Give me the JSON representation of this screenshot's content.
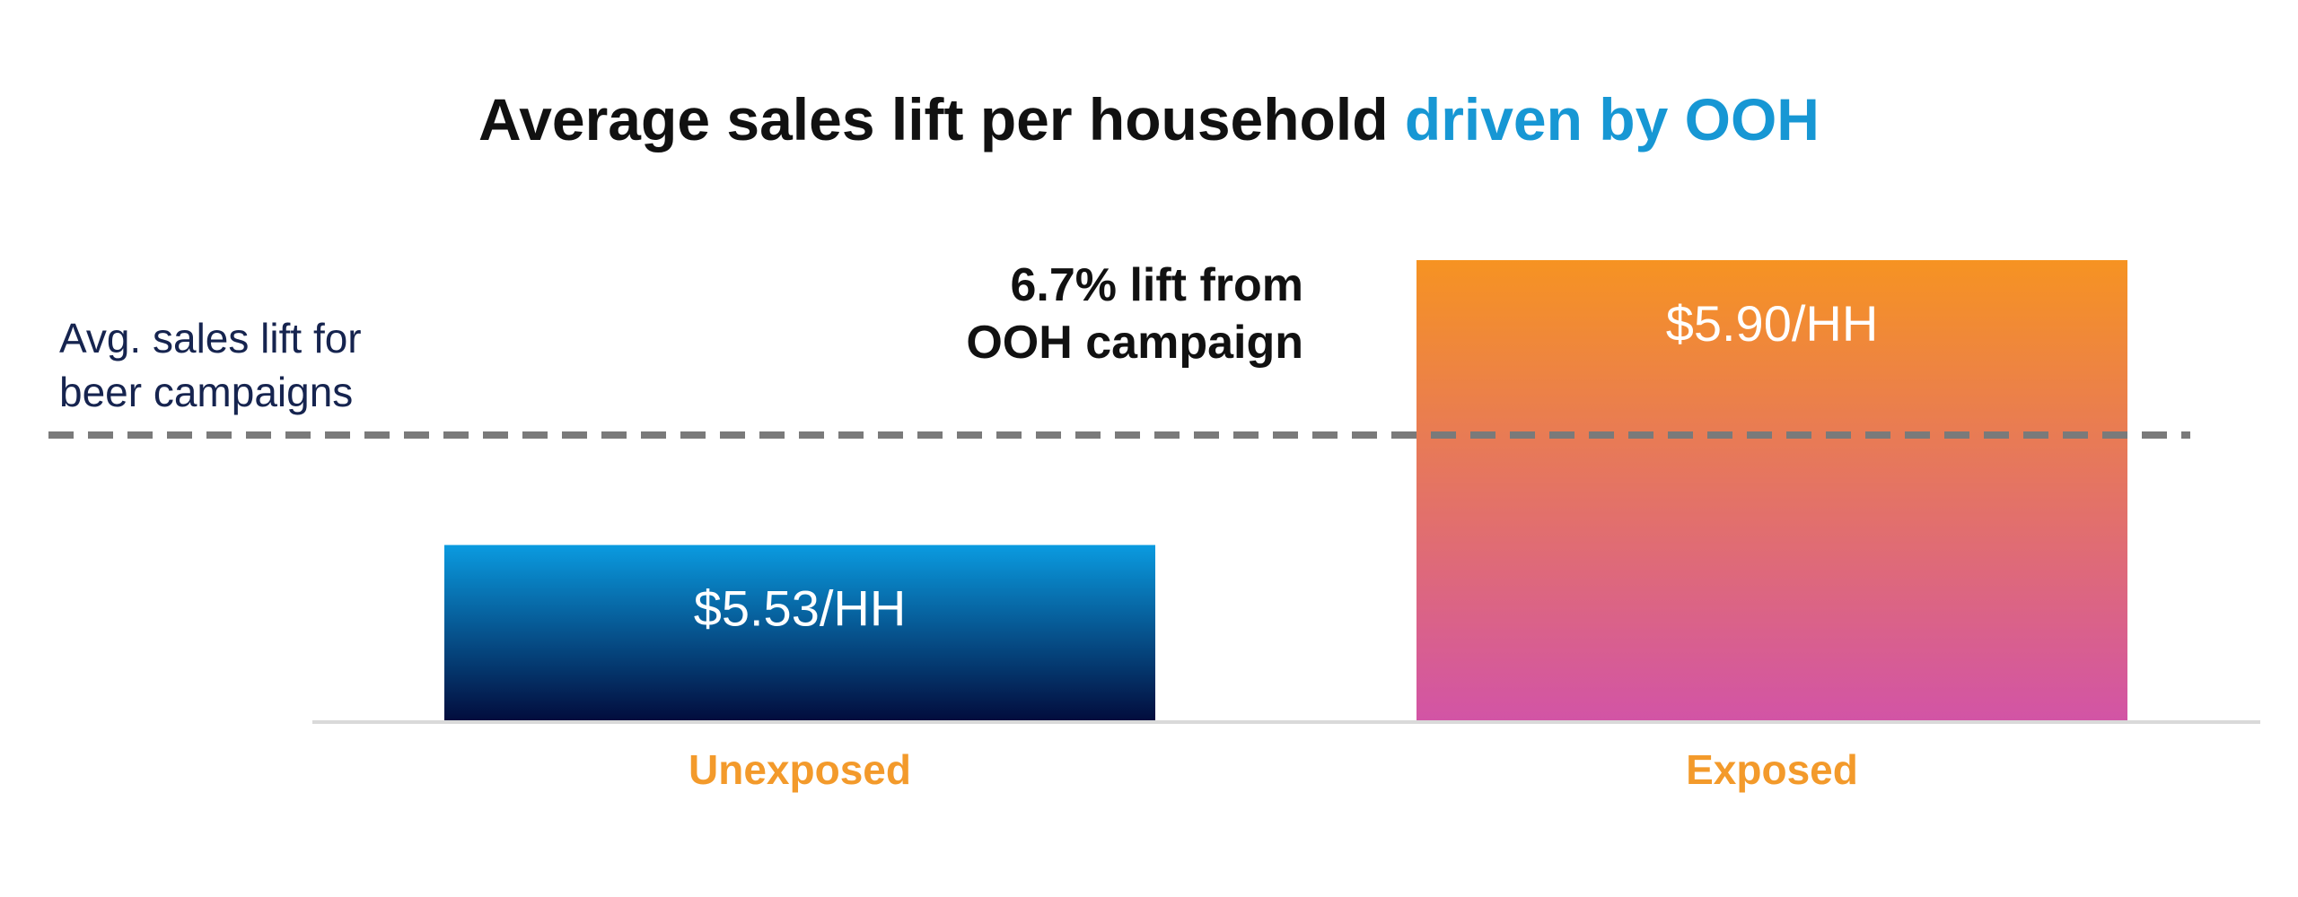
{
  "chart_data": {
    "type": "bar",
    "title": {
      "part1": "Average sales lift per household ",
      "part2": "driven by OOH"
    },
    "categories": [
      "Unexposed",
      "Exposed"
    ],
    "values": [
      5.53,
      5.9
    ],
    "data_labels": [
      "$5.53/HH",
      "$5.90/HH"
    ],
    "reference_line": {
      "label_lines": [
        "Avg. sales lift for",
        "beer campaigns"
      ]
    },
    "annotation": {
      "lines": [
        "6.7% lift from",
        "OOH campaign"
      ]
    },
    "colors": {
      "title_dark": "#111111",
      "title_accent": "#1797d4",
      "category_label": "#f39a2b",
      "data_label": "#ffffff",
      "reference_line": "#7a7a7a",
      "reference_label": "#16244f",
      "annotation_text": "#111111",
      "baseline": "#d9d9d9",
      "unexposed_top": "#0a9be0",
      "unexposed_bottom": "#020b3b",
      "exposed_top": "#f69322",
      "exposed_bottom": "#d254a6"
    }
  }
}
